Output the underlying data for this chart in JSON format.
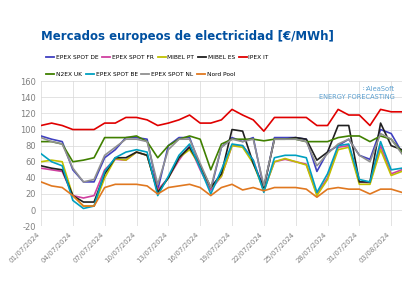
{
  "title": "Mercados europeos de electricidad [€/MWh]",
  "title_color": "#0050a0",
  "dates": [
    "01/07/2024",
    "04/07/2024",
    "07/07/2024",
    "10/07/2024",
    "13/07/2024",
    "16/07/2024",
    "19/07/2024",
    "22/07/2024",
    "25/07/2024",
    "28/07/2024",
    "31/07/2024",
    "03/08/2024"
  ],
  "ylim": [
    -20,
    160
  ],
  "yticks": [
    -20,
    0,
    20,
    40,
    60,
    80,
    100,
    120,
    140,
    160
  ],
  "legend_row1": [
    [
      "EPEX SPOT DE",
      "#4040c0"
    ],
    [
      "EPEX SPOT FR",
      "#d040a0"
    ],
    [
      "MIBEL PT",
      "#c0c000"
    ],
    [
      "MIBEL ES",
      "#202020"
    ],
    [
      "IPEX IT",
      "#e00000"
    ]
  ],
  "legend_row2": [
    [
      "N2EX UK",
      "#408000"
    ],
    [
      "EPEX SPOT BE",
      "#00a0c0"
    ],
    [
      "EPEX SPOT NL",
      "#909090"
    ],
    [
      "Nord Pool",
      "#e07820"
    ]
  ],
  "series": [
    {
      "name": "EPEX SPOT DE",
      "color": "#4040c0",
      "lw": 1.2,
      "values": [
        92,
        88,
        85,
        50,
        35,
        35,
        65,
        75,
        90,
        90,
        88,
        25,
        80,
        90,
        90,
        55,
        25,
        78,
        90,
        85,
        90,
        27,
        90,
        90,
        90,
        88,
        48,
        72,
        80,
        88,
        68,
        63,
        100,
        95,
        72
      ]
    },
    {
      "name": "EPEX SPOT FR",
      "color": "#d040a0",
      "lw": 1.2,
      "values": [
        52,
        50,
        48,
        18,
        15,
        18,
        50,
        63,
        62,
        72,
        68,
        25,
        40,
        62,
        80,
        50,
        25,
        42,
        80,
        80,
        62,
        25,
        60,
        63,
        60,
        57,
        20,
        40,
        78,
        80,
        35,
        34,
        80,
        45,
        50
      ]
    },
    {
      "name": "MIBEL PT",
      "color": "#c0c000",
      "lw": 1.2,
      "values": [
        60,
        62,
        60,
        18,
        5,
        5,
        40,
        64,
        62,
        72,
        68,
        22,
        40,
        65,
        75,
        55,
        28,
        42,
        80,
        78,
        58,
        24,
        60,
        64,
        60,
        56,
        18,
        38,
        75,
        78,
        32,
        32,
        75,
        43,
        48
      ]
    },
    {
      "name": "MIBEL ES",
      "color": "#202020",
      "lw": 1.2,
      "values": [
        55,
        52,
        50,
        18,
        10,
        10,
        45,
        65,
        65,
        72,
        68,
        22,
        40,
        65,
        78,
        55,
        28,
        45,
        100,
        98,
        58,
        28,
        88,
        88,
        90,
        88,
        62,
        72,
        105,
        105,
        35,
        35,
        108,
        80,
        75
      ]
    },
    {
      "name": "IPEX IT",
      "color": "#e00000",
      "lw": 1.2,
      "values": [
        105,
        108,
        105,
        100,
        100,
        100,
        108,
        108,
        115,
        115,
        112,
        105,
        108,
        112,
        118,
        108,
        108,
        112,
        125,
        118,
        112,
        98,
        115,
        115,
        115,
        115,
        105,
        105,
        125,
        118,
        118,
        105,
        125,
        122,
        122
      ]
    },
    {
      "name": "N2EX UK",
      "color": "#408000",
      "lw": 1.2,
      "values": [
        85,
        85,
        82,
        60,
        62,
        65,
        90,
        90,
        90,
        92,
        85,
        65,
        80,
        88,
        92,
        88,
        50,
        82,
        88,
        88,
        88,
        86,
        88,
        88,
        88,
        85,
        85,
        85,
        90,
        92,
        92,
        85,
        92,
        88,
        72
      ]
    },
    {
      "name": "EPEX SPOT BE",
      "color": "#00a0c0",
      "lw": 1.2,
      "values": [
        70,
        60,
        55,
        12,
        2,
        5,
        48,
        65,
        72,
        75,
        72,
        18,
        42,
        68,
        82,
        52,
        20,
        50,
        82,
        80,
        62,
        22,
        65,
        68,
        68,
        65,
        22,
        45,
        80,
        82,
        38,
        35,
        85,
        50,
        52
      ]
    },
    {
      "name": "EPEX SPOT NL",
      "color": "#909090",
      "lw": 1.2,
      "values": [
        90,
        85,
        82,
        52,
        35,
        38,
        68,
        78,
        88,
        88,
        85,
        32,
        75,
        88,
        88,
        58,
        28,
        78,
        88,
        85,
        88,
        30,
        88,
        88,
        88,
        85,
        55,
        70,
        82,
        88,
        68,
        60,
        95,
        88,
        70
      ]
    },
    {
      "name": "Nord Pool",
      "color": "#e07820",
      "lw": 1.2,
      "values": [
        35,
        30,
        28,
        18,
        5,
        5,
        28,
        32,
        32,
        32,
        30,
        20,
        28,
        30,
        32,
        28,
        18,
        28,
        32,
        25,
        28,
        24,
        28,
        28,
        28,
        26,
        16,
        26,
        28,
        26,
        26,
        20,
        26,
        26,
        22
      ]
    }
  ]
}
